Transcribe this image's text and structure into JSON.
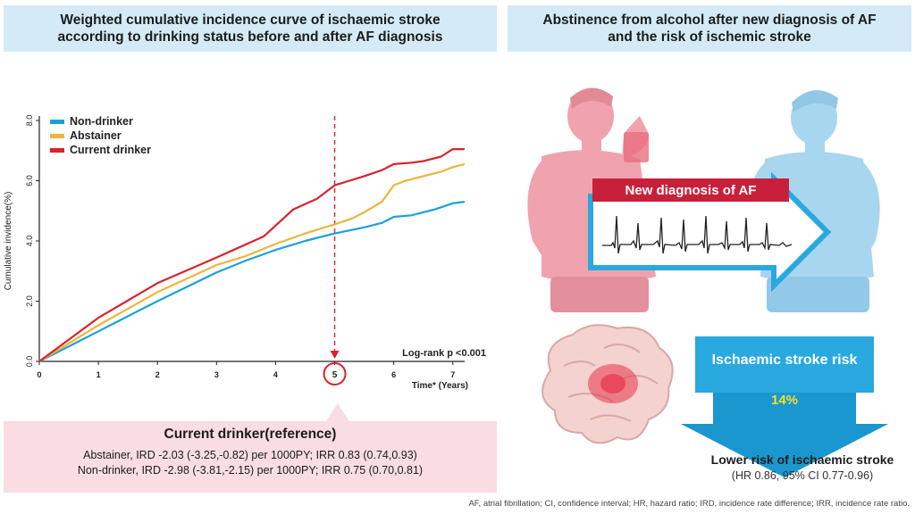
{
  "left_title": "Weighted cumulative incidence curve of ischaemic stroke\naccording to drinking status before and after AF diagnosis",
  "right_title": "Abstinence from alcohol after new diagnosis of AF\nand the risk of ischemic stroke",
  "colors": {
    "non_drinker": "#1ba1d9",
    "abstainer": "#f0b43c",
    "current_drinker": "#d9232d",
    "title_bg": "#d4ebf7",
    "ref_bg": "#f9dde2",
    "arrow_blue": "#29a9e0"
  },
  "chart_data": {
    "type": "line",
    "xlabel": "Time* (Years)",
    "ylabel": "Cumulative invidence(%)",
    "xlim": [
      0,
      7.2
    ],
    "ylim": [
      0,
      8.0
    ],
    "x_ticks": [
      "0",
      "1",
      "2",
      "3",
      "4",
      "5",
      "6",
      "7"
    ],
    "y_ticks": [
      "0.0",
      "2.0",
      "4.0",
      "6.0",
      "8.0"
    ],
    "legend": "top-left",
    "annotation": "Log-rank p <0.001",
    "highlight_x": 5,
    "highlight_label": "5",
    "series": [
      {
        "name": "Non-drinker",
        "x": [
          0,
          1,
          2,
          3,
          3.5,
          4,
          4.5,
          5,
          5.5,
          5.8,
          6,
          6.3,
          6.5,
          6.7,
          7,
          7.2
        ],
        "y": [
          0,
          1.0,
          2.0,
          2.95,
          3.35,
          3.7,
          4.0,
          4.25,
          4.45,
          4.6,
          4.8,
          4.85,
          4.95,
          5.05,
          5.25,
          5.3
        ]
      },
      {
        "name": "Abstainer",
        "x": [
          0,
          1,
          2,
          3,
          3.5,
          4,
          4.5,
          5,
          5.3,
          5.5,
          5.8,
          6,
          6.2,
          6.5,
          6.8,
          7,
          7.2
        ],
        "y": [
          0,
          1.2,
          2.3,
          3.2,
          3.5,
          3.9,
          4.25,
          4.55,
          4.75,
          4.95,
          5.3,
          5.85,
          6.0,
          6.15,
          6.3,
          6.45,
          6.55
        ]
      },
      {
        "name": "Current drinker",
        "x": [
          0,
          1,
          2,
          3,
          3.8,
          4.3,
          4.7,
          5,
          5.5,
          5.8,
          6,
          6.3,
          6.5,
          6.8,
          7,
          7.2
        ],
        "y": [
          0,
          1.45,
          2.6,
          3.45,
          4.15,
          5.05,
          5.4,
          5.85,
          6.15,
          6.35,
          6.55,
          6.6,
          6.65,
          6.8,
          7.05,
          7.05
        ]
      }
    ]
  },
  "reference": {
    "title": "Current drinker(reference)",
    "line1": "Abstainer, IRD -2.03 (-3.25,-0.82) per 1000PY; IRR 0.83 (0.74,0.93)",
    "line2": "Non-drinker, IRD -2.98 (-3.81,-2.15) per 1000PY; IRR 0.75 (0.70,0.81)"
  },
  "illustration": {
    "banner": "New diagnosis of AF",
    "risk_label": "Ischaemic stroke risk",
    "risk_reduction": "14%",
    "outcome_title": "Lower risk of ischaemic stroke",
    "outcome_sub": "(HR 0.86, 95% CI 0.77-0.96)"
  },
  "footnote": "AF, atrial fibrillation; CI, confidence interval; HR, hazard ratio; IRD, incidence rate difference; IRR, incidence rate ratio."
}
